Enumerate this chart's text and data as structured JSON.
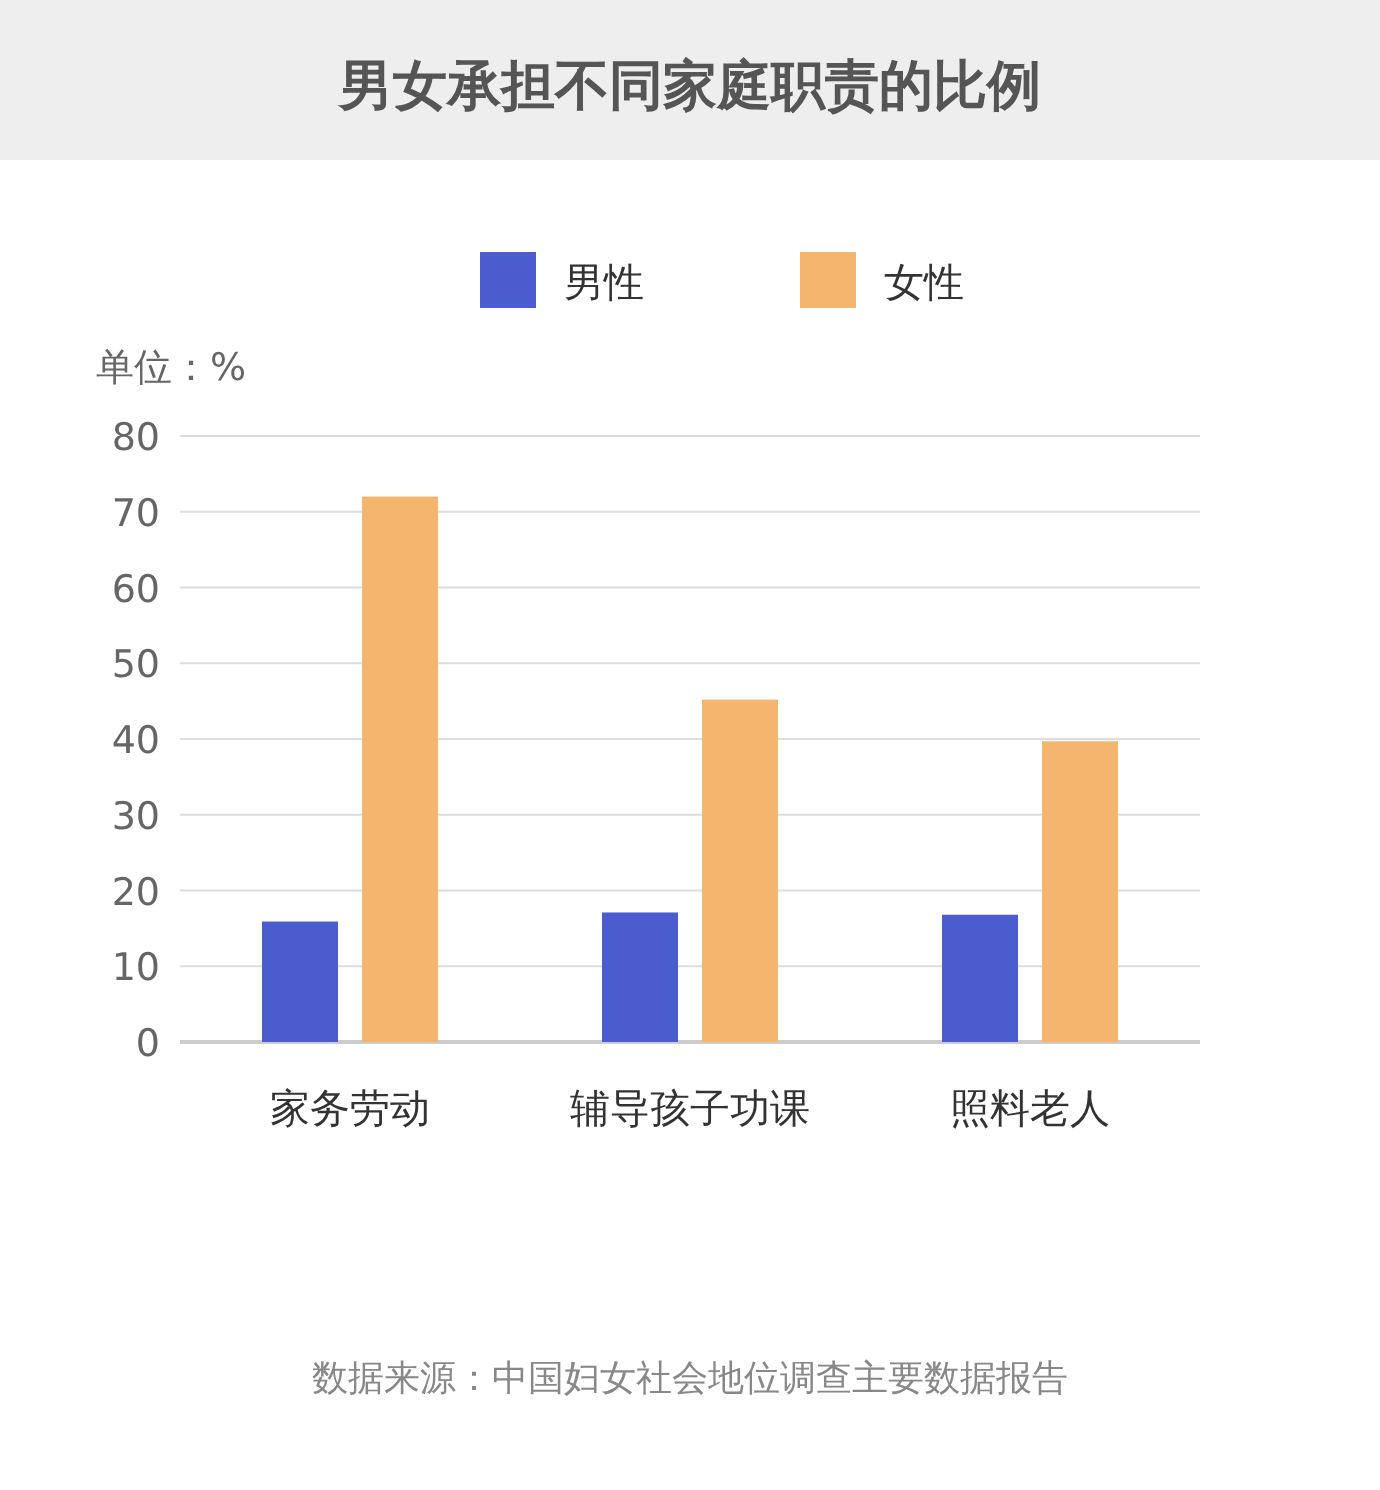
{
  "chart_data": {
    "type": "bar",
    "title": "男女承担不同家庭职责的比例",
    "ylabel": "单位：%",
    "categories": [
      "家务劳动",
      "辅导孩子功课",
      "照料老人"
    ],
    "series": [
      {
        "name": "男性",
        "color": "#4a5cce",
        "values": [
          15.9,
          17.1,
          16.8
        ]
      },
      {
        "name": "女性",
        "color": "#f4b66e",
        "values": [
          72.0,
          45.2,
          39.7
        ]
      }
    ],
    "ylim": [
      0,
      80
    ],
    "yticks": [
      0,
      10,
      20,
      30,
      40,
      50,
      60,
      70,
      80
    ],
    "grid": "y",
    "legend": "top",
    "annotations": [
      "数据来源：中国妇女社会地位调查主要数据报告"
    ]
  }
}
